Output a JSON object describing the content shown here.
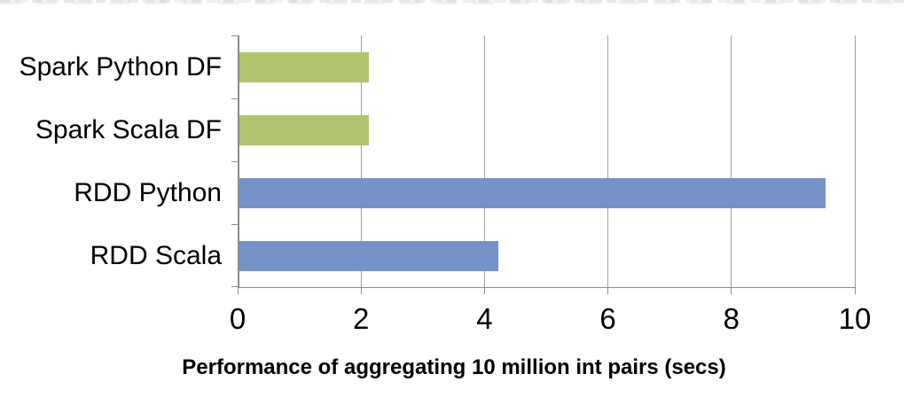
{
  "chart_data": {
    "type": "bar",
    "orientation": "horizontal",
    "title": "Performance of aggregating 10 million int pairs (secs)",
    "categories": [
      "Spark Python DF",
      "Spark Scala DF",
      "RDD Python",
      "RDD Scala"
    ],
    "values": [
      2.1,
      2.1,
      9.5,
      4.2
    ],
    "bar_colors": [
      "#b0c46d",
      "#b0c46d",
      "#7492c7",
      "#7492c7"
    ],
    "xlabel": "",
    "ylabel": "",
    "xlim": [
      0,
      10
    ],
    "x_tick_values": [
      0,
      2,
      4,
      6,
      8,
      10
    ],
    "x_tick_labels": [
      "0",
      "2",
      "4",
      "6",
      "8",
      "10"
    ],
    "grid": "vertical-gridlines-at-nonzero-ticks",
    "legend_position": "none",
    "colors": {
      "dataframe_green": "#b0c46d",
      "rdd_blue": "#7492c7",
      "gridline": "#a0a0a0",
      "axis": "#8c8c8c",
      "text": "#000000",
      "background": "#ffffff"
    }
  }
}
